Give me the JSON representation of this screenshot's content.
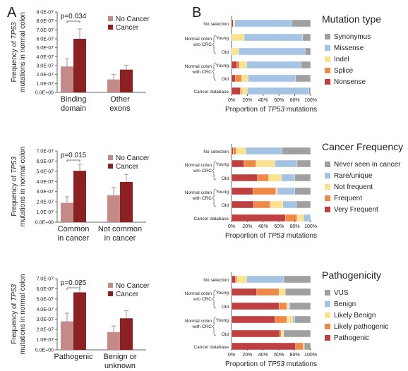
{
  "panel_labels": {
    "a": "A",
    "b": "B"
  },
  "y_axis_label": {
    "line1_pre": "Frequency of ",
    "line1_italic": "TP53",
    "line2": "mutations in normal colon"
  },
  "x_axis_label": {
    "pre": "Proportion of ",
    "italic": "TP53",
    "post": " mutations"
  },
  "row_labels": [
    "No selection",
    "Normal colon",
    "w/o CRC",
    "Young",
    "Old",
    "Normal colon",
    "with CRC",
    "Young",
    "Old",
    "Cancer database"
  ],
  "colors": {
    "no_cancer": "#c48a88",
    "cancer": "#8b2121",
    "grey": "#a0a0a0",
    "blue": "#a5c4e4",
    "yellow": "#fbe38e",
    "orange": "#ee8a46",
    "red": "#bf4040"
  },
  "chart_data": [
    {
      "type": "bar",
      "categories": [
        [
          "Binding",
          "domain"
        ],
        [
          "Other",
          "exons"
        ]
      ],
      "series": [
        {
          "name": "No Cancer",
          "values": [
            2.9e-07,
            1.45e-07
          ],
          "errors": [
            8.5e-08,
            5.5e-08
          ]
        },
        {
          "name": "Cancer",
          "values": [
            6e-07,
            2.55e-07
          ],
          "errors": [
            1.1e-07,
            5e-08
          ]
        }
      ],
      "ylim": [
        0,
        9e-07
      ],
      "yticks": [
        "0.0E+00",
        "1.0E-07",
        "2.0E-07",
        "3.0E-07",
        "4.0E-07",
        "5.0E-07",
        "6.0E-07",
        "7.0E-07",
        "8.0E-07",
        "9.0E-07"
      ],
      "annotation": "p=0.034",
      "legend": "top-right"
    },
    {
      "type": "bar",
      "categories": [
        [
          "Common",
          "in cancer"
        ],
        [
          "Not common",
          "in cancer"
        ]
      ],
      "series": [
        {
          "name": "No Cancer",
          "values": [
            1.9e-07,
            2.65e-07
          ],
          "errors": [
            6e-08,
            7.5e-08
          ]
        },
        {
          "name": "Cancer",
          "values": [
            5.05e-07,
            3.95e-07
          ],
          "errors": [
            6.5e-08,
            7.5e-08
          ]
        }
      ],
      "ylim": [
        0,
        7e-07
      ],
      "yticks": [
        "0.0E+00",
        "1.0E-07",
        "2.0E-07",
        "3.0E-07",
        "4.0E-07",
        "5.0E-07",
        "6.0E-07",
        "7.0E-07"
      ],
      "annotation": "p=0.015",
      "legend": "top-right"
    },
    {
      "type": "bar",
      "categories": [
        [
          "Pathogenic"
        ],
        [
          "Benign or",
          "unknown"
        ]
      ],
      "series": [
        {
          "name": "No Cancer",
          "values": [
            2.8e-07,
            1.75e-07
          ],
          "errors": [
            8e-08,
            6e-08
          ]
        },
        {
          "name": "Cancer",
          "values": [
            5.65e-07,
            3.1e-07
          ],
          "errors": [
            1e-07,
            7.5e-08
          ]
        }
      ],
      "ylim": [
        0,
        7e-07
      ],
      "yticks": [
        "0.0E+00",
        "1.0E-07",
        "2.0E-07",
        "3.0E-07",
        "4.0E-07",
        "5.0E-07",
        "6.0E-07",
        "7.0E-07"
      ],
      "annotation": "p=0.025",
      "legend": "top-right"
    },
    {
      "type": "bar",
      "stacked": true,
      "orientation": "horizontal",
      "title": "Mutation type",
      "x": [
        "0%",
        "20%",
        "40%",
        "60%",
        "80%",
        "100%"
      ],
      "xlim": [
        0,
        100
      ],
      "categories": [
        "No selection",
        "Young",
        "Old",
        "Young",
        "Old",
        "Cancer database"
      ],
      "series": [
        {
          "name": "Nonsense",
          "values": [
            2,
            0,
            0,
            7,
            5,
            11
          ]
        },
        {
          "name": "Splice",
          "values": [
            0,
            0,
            0,
            3,
            8,
            2
          ]
        },
        {
          "name": "Indel",
          "values": [
            2,
            16,
            9,
            9,
            8,
            7
          ]
        },
        {
          "name": "Missense",
          "values": [
            72,
            74,
            84,
            69,
            60,
            78
          ]
        },
        {
          "name": "Synonymus",
          "values": [
            24,
            10,
            7,
            12,
            19,
            2
          ]
        }
      ],
      "legend": "right"
    },
    {
      "type": "bar",
      "stacked": true,
      "orientation": "horizontal",
      "title": "Cancer Frequency",
      "x": [
        "0%",
        "20%",
        "40%",
        "60%",
        "80%",
        "100%"
      ],
      "xlim": [
        0,
        100
      ],
      "categories": [
        "No selection",
        "Young",
        "Old",
        "Young",
        "Old",
        "Cancer database"
      ],
      "series": [
        {
          "name": "Very Frequent",
          "values": [
            2,
            16,
            33,
            27,
            28,
            68
          ]
        },
        {
          "name": "Frequent",
          "values": [
            4,
            15,
            14,
            29,
            21,
            15
          ]
        },
        {
          "name": "Not frequent",
          "values": [
            12,
            24,
            16,
            2,
            16,
            8
          ]
        },
        {
          "name": "Rare/unique",
          "values": [
            46,
            28,
            17,
            22,
            17,
            9
          ]
        },
        {
          "name": "Never seen in cancer",
          "values": [
            36,
            17,
            20,
            20,
            18,
            0
          ]
        }
      ],
      "legend": "right"
    },
    {
      "type": "bar",
      "stacked": true,
      "orientation": "horizontal",
      "title": "Pathogenicity",
      "x": [
        "0%",
        "20%",
        "40%",
        "60%",
        "80%",
        "100%"
      ],
      "xlim": [
        0,
        100
      ],
      "categories": [
        "No selection",
        "Young",
        "Old",
        "Young",
        "Old",
        "Cancer database"
      ],
      "series": [
        {
          "name": "Pathogenic",
          "values": [
            5,
            32,
            60,
            55,
            61,
            81
          ]
        },
        {
          "name": "Likely pathogenic",
          "values": [
            2,
            28,
            10,
            15,
            2,
            10
          ]
        },
        {
          "name": "Likely Benign",
          "values": [
            12,
            8,
            2,
            7,
            3,
            1
          ]
        },
        {
          "name": "Benign",
          "values": [
            47,
            0,
            2,
            3,
            0,
            0
          ]
        },
        {
          "name": "VUS",
          "values": [
            34,
            32,
            26,
            20,
            34,
            8
          ]
        }
      ],
      "legend": "right"
    }
  ]
}
